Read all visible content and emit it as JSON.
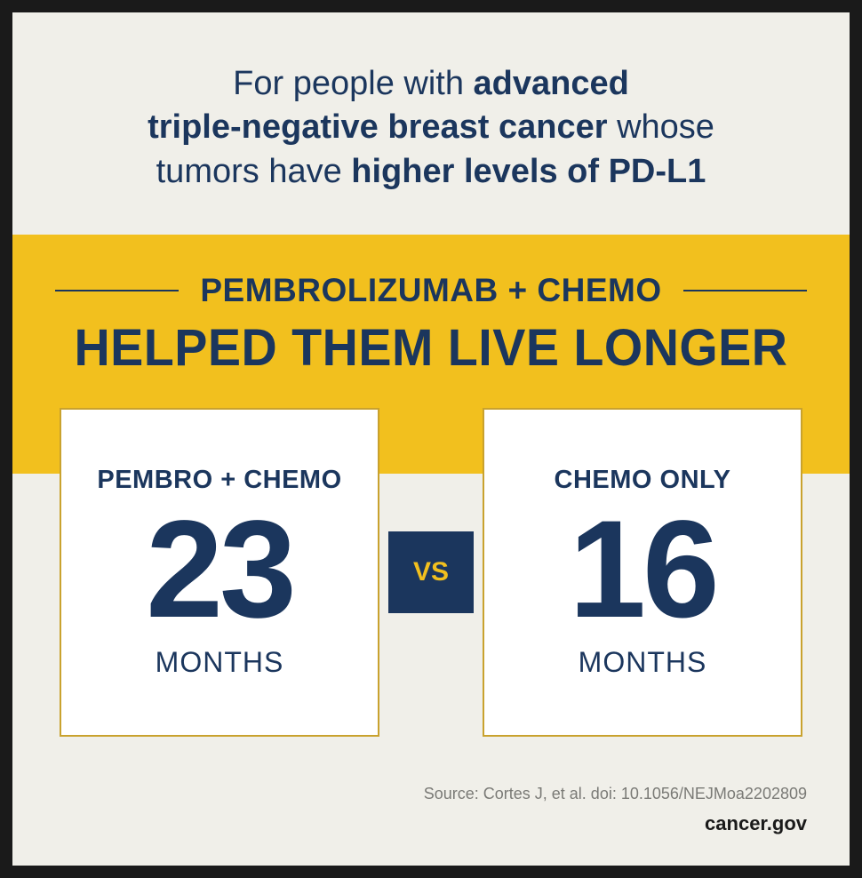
{
  "colors": {
    "border": "#1a1a1a",
    "page_bg": "#f0efe9",
    "banner_bg": "#f2c01e",
    "card_bg": "#ffffff",
    "card_border": "#c9a22e",
    "text_navy": "#1b365d",
    "vs_bg": "#1b365d",
    "vs_text": "#f2c01e",
    "source_text": "#7a7a76"
  },
  "header": {
    "line1_pre": "For people with ",
    "line1_bold": "advanced",
    "line2_bold": "triple-negative breast cancer",
    "line2_post": " whose",
    "line3_pre": "tumors have ",
    "line3_bold": "higher levels of PD-L1"
  },
  "banner": {
    "title": "PEMBROLIZUMAB + CHEMO",
    "subtitle": "HELPED THEM LIVE LONGER"
  },
  "comparison": {
    "left": {
      "label": "PEMBRO + CHEMO",
      "value": "23",
      "unit": "MONTHS"
    },
    "vs": "VS",
    "right": {
      "label": "CHEMO ONLY",
      "value": "16",
      "unit": "MONTHS"
    }
  },
  "footer": {
    "source": "Source: Cortes J, et al. doi: 10.1056/NEJMoa2202809",
    "site": "cancer.gov"
  }
}
